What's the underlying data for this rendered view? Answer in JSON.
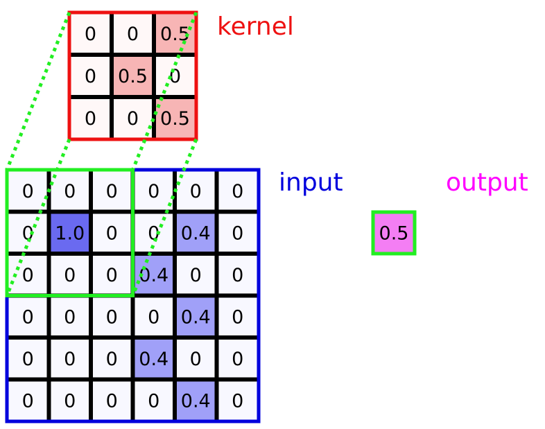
{
  "labels": {
    "kernel": "kernel",
    "input": "input",
    "output": "output"
  },
  "kernel": [
    [
      "0",
      "0",
      "0.5"
    ],
    [
      "0",
      "0.5",
      "0"
    ],
    [
      "0",
      "0",
      "0.5"
    ]
  ],
  "input": [
    [
      "0",
      "0",
      "0",
      "0",
      "0",
      "0"
    ],
    [
      "0",
      "1.0",
      "0",
      "0",
      "0.4",
      "0"
    ],
    [
      "0",
      "0",
      "0",
      "0.4",
      "0",
      "0"
    ],
    [
      "0",
      "0",
      "0",
      "0",
      "0.4",
      "0"
    ],
    [
      "0",
      "0",
      "0",
      "0.4",
      "0",
      "0"
    ],
    [
      "0",
      "0",
      "0",
      "0",
      "0.4",
      "0"
    ]
  ],
  "output": "0.5",
  "receptive_field": {
    "rows": [
      0,
      2
    ],
    "cols": [
      0,
      2
    ]
  },
  "colors": {
    "kernel_border": "#ee1111",
    "kernel_cell": "#fff8f8",
    "kernel_highlight": "#f7b5b5",
    "input_border": "#0000dd",
    "input_cell": "#f8f8ff",
    "input_highlight_light": "#a0a0f8",
    "input_highlight_dark": "#6a6af0",
    "output_cell": "#f47ef4",
    "receptive_field_border": "#22ee22",
    "kernel_label": "#ee1111",
    "input_label": "#0000dd",
    "output_label": "#ff00ff"
  }
}
